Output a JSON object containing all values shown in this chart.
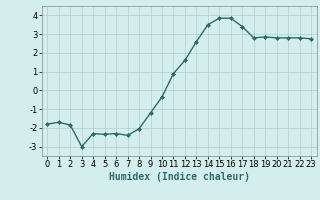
{
  "x": [
    0,
    1,
    2,
    3,
    4,
    5,
    6,
    7,
    8,
    9,
    10,
    11,
    12,
    13,
    14,
    15,
    16,
    17,
    18,
    19,
    20,
    21,
    22,
    23
  ],
  "y": [
    -1.8,
    -1.7,
    -1.85,
    -3.0,
    -2.3,
    -2.35,
    -2.3,
    -2.4,
    -2.05,
    -1.2,
    -0.35,
    0.9,
    1.6,
    2.6,
    3.5,
    3.85,
    3.85,
    3.4,
    2.8,
    2.85,
    2.8,
    2.8,
    2.8,
    2.75
  ],
  "line_color": "#2d6b6b",
  "marker": "D",
  "marker_size": 2.0,
  "xlabel": "Humidex (Indice chaleur)",
  "xlabel_fontsize": 7,
  "xlim": [
    -0.5,
    23.5
  ],
  "ylim": [
    -3.5,
    4.5
  ],
  "yticks": [
    -3,
    -2,
    -1,
    0,
    1,
    2,
    3,
    4
  ],
  "xticks": [
    0,
    1,
    2,
    3,
    4,
    5,
    6,
    7,
    8,
    9,
    10,
    11,
    12,
    13,
    14,
    15,
    16,
    17,
    18,
    19,
    20,
    21,
    22,
    23
  ],
  "background_color": "#d4eeed",
  "grid_color": "#b0d0cc",
  "tick_fontsize": 6,
  "line_width": 1.0
}
